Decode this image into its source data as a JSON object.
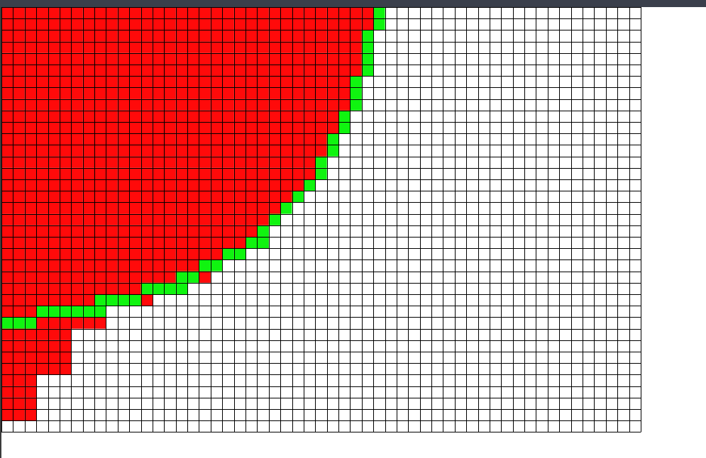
{
  "grid": {
    "columns": 55,
    "rows": 37,
    "colors": {
      "background": "#ffffff",
      "grid_line": "#000000",
      "filled": "#ff0a0a",
      "boundary": "#10f410"
    },
    "row_fill_counts": [
      32,
      32,
      31,
      31,
      31,
      31,
      30,
      30,
      30,
      29,
      29,
      28,
      28,
      27,
      27,
      26,
      25,
      24,
      23,
      22,
      21,
      20,
      19,
      18,
      16,
      13,
      9,
      9,
      6,
      6,
      6,
      6,
      3,
      3,
      3,
      3,
      0
    ],
    "boundary_runs": [
      {
        "row": 0,
        "from": 32,
        "to": 32
      },
      {
        "row": 1,
        "from": 32,
        "to": 32
      },
      {
        "row": 2,
        "from": 31,
        "to": 31
      },
      {
        "row": 3,
        "from": 31,
        "to": 31
      },
      {
        "row": 4,
        "from": 31,
        "to": 31
      },
      {
        "row": 5,
        "from": 31,
        "to": 31
      },
      {
        "row": 6,
        "from": 30,
        "to": 30
      },
      {
        "row": 7,
        "from": 30,
        "to": 30
      },
      {
        "row": 8,
        "from": 30,
        "to": 30
      },
      {
        "row": 9,
        "from": 29,
        "to": 29
      },
      {
        "row": 10,
        "from": 29,
        "to": 29
      },
      {
        "row": 11,
        "from": 28,
        "to": 28
      },
      {
        "row": 12,
        "from": 28,
        "to": 28
      },
      {
        "row": 13,
        "from": 27,
        "to": 27
      },
      {
        "row": 14,
        "from": 27,
        "to": 27
      },
      {
        "row": 15,
        "from": 26,
        "to": 26
      },
      {
        "row": 16,
        "from": 25,
        "to": 25
      },
      {
        "row": 17,
        "from": 24,
        "to": 24
      },
      {
        "row": 18,
        "from": 23,
        "to": 23
      },
      {
        "row": 19,
        "from": 22,
        "to": 22
      },
      {
        "row": 20,
        "from": 21,
        "to": 22
      },
      {
        "row": 21,
        "from": 19,
        "to": 20
      },
      {
        "row": 22,
        "from": 17,
        "to": 18
      },
      {
        "row": 23,
        "from": 15,
        "to": 16
      },
      {
        "row": 24,
        "from": 12,
        "to": 15
      },
      {
        "row": 25,
        "from": 8,
        "to": 11
      },
      {
        "row": 26,
        "from": 3,
        "to": 8
      },
      {
        "row": 27,
        "from": 0,
        "to": 2
      }
    ]
  }
}
